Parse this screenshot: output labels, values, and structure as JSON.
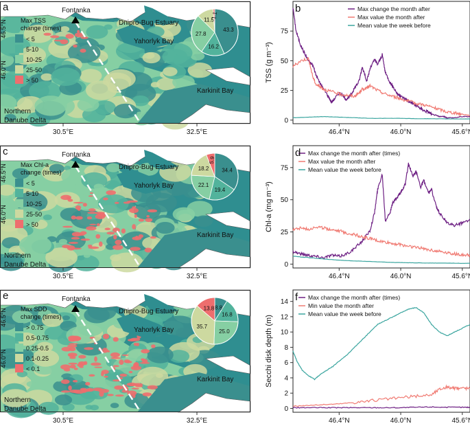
{
  "colors": {
    "sea": "#2f8e90",
    "land_lt5": "#3a8f8e",
    "land_5_10": "#52b39c",
    "land_10_25": "#86cfa3",
    "land_25_50": "#cdd9a0",
    "land_gt50": "#ee6e6e",
    "purple": "#6d1f83",
    "salmon": "#f07a72",
    "teal": "#3aa59f",
    "border": "#333333"
  },
  "maps": [
    {
      "letter": "a",
      "legend_title": [
        "Max TSS",
        "change (times)"
      ],
      "legend": [
        {
          "label": "< 5",
          "color": "#3a8f8e"
        },
        {
          "label": "5-10",
          "color": "#52b39c"
        },
        {
          "label": "10-25",
          "color": "#86cfa3"
        },
        {
          "label": "25-50",
          "color": "#cdd9a0"
        },
        {
          "label": "> 50",
          "color": "#ee6e6e"
        }
      ],
      "pie": [
        {
          "value": 43.3,
          "label": "43.3",
          "color": "#3a8f8e"
        },
        {
          "value": 16.2,
          "label": "16.2",
          "color": "#52b39c"
        },
        {
          "value": 27.8,
          "label": "27.8",
          "color": "#86cfa3"
        },
        {
          "value": 11.5,
          "label": "11.5",
          "color": "#cdd9a0"
        },
        {
          "value": 1.1,
          "label": "1.1",
          "color": "#ee6e6e"
        }
      ]
    },
    {
      "letter": "c",
      "legend_title": [
        "Max Chl-a",
        "change (times)"
      ],
      "legend": [
        {
          "label": "< 5",
          "color": "#3a8f8e"
        },
        {
          "label": "5-10",
          "color": "#52b39c"
        },
        {
          "label": "10-25",
          "color": "#86cfa3"
        },
        {
          "label": "25-50",
          "color": "#cdd9a0"
        },
        {
          "label": "> 50",
          "color": "#ee6e6e"
        }
      ],
      "pie": [
        {
          "value": 34.4,
          "label": "34.4",
          "color": "#3a8f8e"
        },
        {
          "value": 19.4,
          "label": "19.4",
          "color": "#52b39c"
        },
        {
          "value": 22.1,
          "label": "22.1",
          "color": "#86cfa3"
        },
        {
          "value": 18.2,
          "label": "18.2",
          "color": "#cdd9a0"
        },
        {
          "value": 5.9,
          "label": "5.9",
          "color": "#ee6e6e"
        }
      ]
    },
    {
      "letter": "e",
      "legend_title": [
        "Max SDD",
        "change (times)"
      ],
      "legend": [
        {
          "label": "> 0.75",
          "color": "#3a8f8e"
        },
        {
          "label": "0.5-0.75",
          "color": "#52b39c"
        },
        {
          "label": "0.25-0.5",
          "color": "#86cfa3"
        },
        {
          "label": "0.1-0.25",
          "color": "#cdd9a0"
        },
        {
          "label": "< 0.1",
          "color": "#ee6e6e"
        }
      ],
      "pie": [
        {
          "value": 8.8,
          "label": "8.8",
          "color": "#3a8f8e"
        },
        {
          "value": 16.8,
          "label": "16.8",
          "color": "#52b39c"
        },
        {
          "value": 25.0,
          "label": "25.0",
          "color": "#86cfa3"
        },
        {
          "value": 35.7,
          "label": "35.7",
          "color": "#cdd9a0"
        },
        {
          "value": 13.8,
          "label": "13.8",
          "color": "#ee6e6e"
        }
      ]
    }
  ],
  "map_labels": {
    "fontanka": "Fontanka",
    "estuary": "Dnipro-Bug Estuary",
    "yahorlyk": "Yahorlyk Bay",
    "karkinit": "Karkinit Bay",
    "northern": "Northern",
    "danube": "Danube Delta",
    "x_ticks": [
      "30.5°E",
      "32.5°E"
    ],
    "y_ticks": [
      "46.5°N",
      "46.0°N"
    ]
  },
  "chart_data": [
    {
      "type": "line",
      "letter": "b",
      "xlabel": "",
      "ylabel": "TSS (g m⁻³)",
      "xlim": [
        46.7,
        45.55
      ],
      "x_ticks": [
        "46.4°N",
        "46.0°N",
        "45.6°N"
      ],
      "ylim": [
        -3,
        100
      ],
      "y_ticks": [
        0,
        25,
        50,
        75
      ],
      "series": [
        {
          "name": "Max change the month after",
          "color": "#6d1f83",
          "x": [
            46.7,
            46.68,
            46.65,
            46.62,
            46.6,
            46.57,
            46.55,
            46.52,
            46.5,
            46.47,
            46.45,
            46.43,
            46.4,
            46.37,
            46.35,
            46.32,
            46.3,
            46.27,
            46.25,
            46.22,
            46.2,
            46.17,
            46.15,
            46.12,
            46.1,
            46.07,
            46.05,
            46.02,
            46.0,
            45.97,
            45.95,
            45.92,
            45.9,
            45.87,
            45.85,
            45.82,
            45.8,
            45.77,
            45.75,
            45.72,
            45.7,
            45.65,
            45.6,
            45.55
          ],
          "y": [
            95,
            75,
            63,
            55,
            50,
            46,
            38,
            30,
            26,
            20,
            15,
            18,
            23,
            20,
            17,
            22,
            27,
            33,
            45,
            33,
            43,
            51,
            47,
            55,
            40,
            32,
            28,
            22,
            20,
            18,
            16,
            14,
            12,
            10,
            8,
            7,
            5,
            4,
            3,
            3,
            2,
            2,
            3,
            3
          ]
        },
        {
          "name": "Max value the month after",
          "color": "#f07a72",
          "x": [
            46.7,
            46.65,
            46.6,
            46.57,
            46.55,
            46.52,
            46.5,
            46.45,
            46.4,
            46.35,
            46.3,
            46.27,
            46.25,
            46.22,
            46.2,
            46.15,
            46.1,
            46.05,
            46.0,
            45.95,
            45.9,
            45.85,
            45.8,
            45.75,
            45.7,
            45.65,
            45.6,
            45.55
          ],
          "y": [
            45,
            50,
            52,
            36,
            30,
            28,
            26,
            24,
            22,
            21,
            20,
            23,
            26,
            27,
            29,
            25,
            22,
            20,
            18,
            16,
            14,
            13,
            11,
            9,
            7,
            6,
            5,
            4
          ]
        },
        {
          "name": "Mean value the week before",
          "color": "#3aa59f",
          "x": [
            46.7,
            46.6,
            46.5,
            46.4,
            46.3,
            46.2,
            46.1,
            46.0,
            45.9,
            45.8,
            45.7,
            45.6,
            45.55
          ],
          "y": [
            2,
            2.5,
            3,
            2.5,
            2,
            1.5,
            1.5,
            1.5,
            1.2,
            1.2,
            1,
            1,
            1
          ]
        }
      ]
    },
    {
      "type": "line",
      "letter": "d",
      "xlabel": "",
      "ylabel": "Chl-a (mg m⁻³)",
      "xlim": [
        46.7,
        45.55
      ],
      "x_ticks": [
        "46.4°N",
        "46.0°N",
        "45.6°N"
      ],
      "ylim": [
        -3,
        92
      ],
      "y_ticks": [
        0,
        25,
        50,
        75
      ],
      "series": [
        {
          "name": "Max change the month after (times)",
          "color": "#6d1f83",
          "x": [
            46.7,
            46.65,
            46.6,
            46.55,
            46.5,
            46.45,
            46.4,
            46.35,
            46.3,
            46.25,
            46.2,
            46.17,
            46.15,
            46.12,
            46.1,
            46.07,
            46.05,
            46.02,
            46.0,
            45.97,
            45.95,
            45.92,
            45.9,
            45.87,
            45.85,
            45.82,
            45.8,
            45.77,
            45.75,
            45.72,
            45.7,
            45.65,
            45.6,
            45.55
          ],
          "y": [
            10,
            8,
            7,
            6,
            5,
            7,
            6,
            8,
            12,
            18,
            26,
            40,
            58,
            70,
            34,
            40,
            48,
            52,
            56,
            62,
            78,
            68,
            72,
            60,
            65,
            55,
            58,
            45,
            40,
            35,
            32,
            30,
            32,
            35
          ]
        },
        {
          "name": "Max value the month after",
          "color": "#f07a72",
          "x": [
            46.7,
            46.65,
            46.6,
            46.55,
            46.5,
            46.45,
            46.4,
            46.35,
            46.3,
            46.25,
            46.2,
            46.15,
            46.1,
            46.05,
            46.0,
            45.95,
            45.9,
            45.85,
            45.8,
            45.75,
            45.7,
            45.65,
            45.6,
            45.55
          ],
          "y": [
            27,
            28,
            27,
            29,
            28,
            27,
            26,
            24,
            23,
            21,
            20,
            18,
            17,
            16,
            15,
            14,
            13,
            12,
            11,
            10,
            9,
            8,
            7,
            7
          ]
        },
        {
          "name": "Mean value the week before",
          "color": "#3aa59f",
          "x": [
            46.7,
            46.6,
            46.5,
            46.4,
            46.3,
            46.2,
            46.1,
            46.0,
            45.9,
            45.8,
            45.7,
            45.6,
            45.55
          ],
          "y": [
            6,
            5,
            4,
            3,
            2.5,
            2,
            1.5,
            1.2,
            1,
            0.8,
            0.8,
            0.6,
            0.6
          ]
        }
      ]
    },
    {
      "type": "line",
      "letter": "f",
      "xlabel": "",
      "ylabel": "Secchi disk depth (m)",
      "xlim": [
        46.7,
        45.55
      ],
      "x_ticks": [
        "46.4°N",
        "46.0°N",
        "45.6°N"
      ],
      "ylim": [
        -0.5,
        15.5
      ],
      "y_ticks": [
        0,
        2,
        4,
        6,
        8,
        10,
        12,
        14
      ],
      "series": [
        {
          "name": "Max change the month after (times)",
          "color": "#6d1f83",
          "x": [
            46.7,
            46.6,
            46.5,
            46.4,
            46.3,
            46.2,
            46.1,
            46.0,
            45.9,
            45.8,
            45.7,
            45.6,
            45.55
          ],
          "y": [
            0.1,
            0.1,
            0.1,
            0.1,
            0.1,
            0.1,
            0.1,
            0.1,
            0.15,
            0.2,
            0.15,
            0.15,
            0.15
          ]
        },
        {
          "name": "Min value the month after",
          "color": "#f07a72",
          "x": [
            46.7,
            46.6,
            46.5,
            46.4,
            46.3,
            46.2,
            46.1,
            46.0,
            45.9,
            45.8,
            45.75,
            45.7,
            45.65,
            45.6,
            45.55
          ],
          "y": [
            0.3,
            0.4,
            0.5,
            0.6,
            0.8,
            1.0,
            1.2,
            1.4,
            1.6,
            1.8,
            2.5,
            2.8,
            2.6,
            2.7,
            2.6
          ]
        },
        {
          "name": "Mean value the week before",
          "color": "#3aa59f",
          "x": [
            46.7,
            46.67,
            46.64,
            46.6,
            46.56,
            46.52,
            46.48,
            46.44,
            46.4,
            46.35,
            46.3,
            46.25,
            46.2,
            46.15,
            46.1,
            46.05,
            46.0,
            45.95,
            45.9,
            45.85,
            45.8,
            45.75,
            45.7,
            45.65,
            45.6,
            45.55
          ],
          "y": [
            7.5,
            6,
            5,
            4.3,
            3.8,
            4.5,
            5,
            5.5,
            6.2,
            7,
            8,
            9,
            10,
            11,
            11.5,
            12,
            12.5,
            13,
            13.2,
            12.5,
            11,
            10,
            9.5,
            10,
            10.5,
            11
          ]
        }
      ]
    }
  ]
}
